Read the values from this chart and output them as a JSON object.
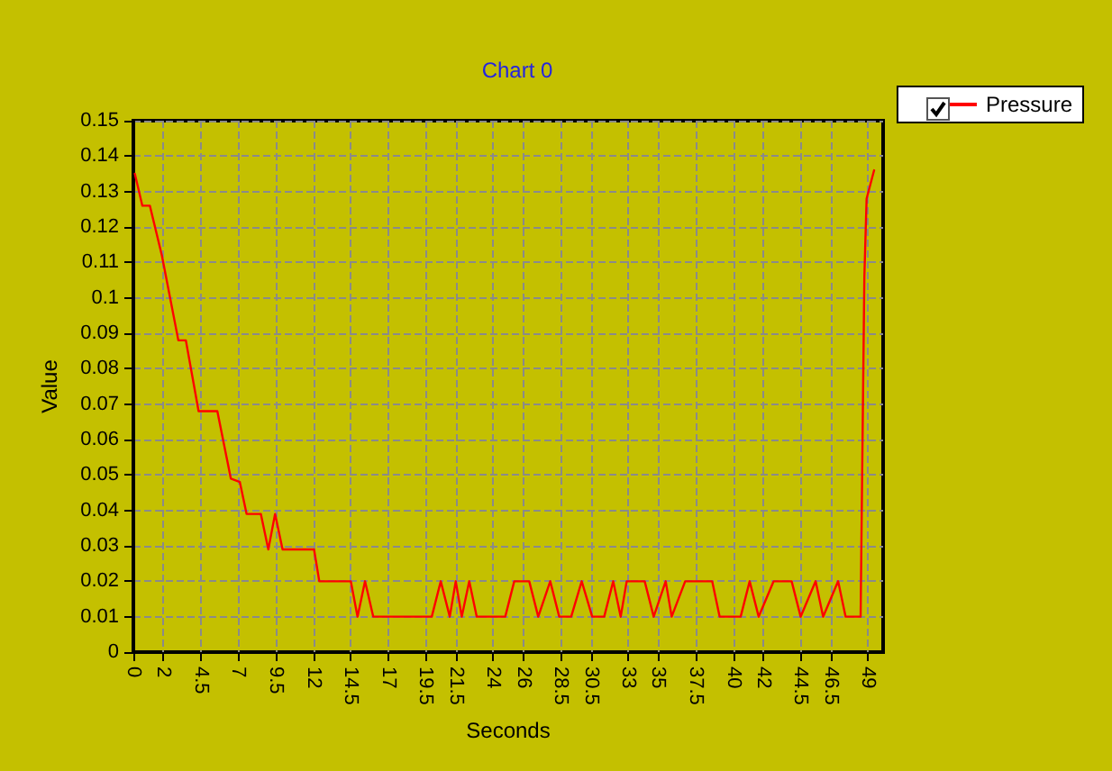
{
  "chart_data": {
    "type": "line",
    "title": "Chart 0",
    "xlabel": "Seconds",
    "ylabel": "Value",
    "xlim": [
      0,
      50
    ],
    "xticks": [
      0,
      2,
      4.5,
      7,
      9.5,
      12,
      14.5,
      17,
      19.5,
      21.5,
      24,
      26,
      28.5,
      30.5,
      33,
      35,
      37.5,
      40,
      42,
      44.5,
      46.5,
      49
    ],
    "ylim": [
      0,
      0.15
    ],
    "yticks": [
      0,
      0.01,
      0.02,
      0.03,
      0.04,
      0.05,
      0.06,
      0.07,
      0.08,
      0.09,
      0.1,
      0.11,
      0.12,
      0.13,
      0.14,
      0.15
    ],
    "grid": true,
    "legend": "top right",
    "line_style": "solid",
    "marker": "none",
    "series": [
      {
        "name": "Pressure",
        "color": "#ff0000",
        "x": [
          0.1,
          0.6,
          1.1,
          1.9,
          3.0,
          3.5,
          4.35,
          5.6,
          6.5,
          7.1,
          7.55,
          8.5,
          9.0,
          9.45,
          9.95,
          12.05,
          12.4,
          14.5,
          14.95,
          15.45,
          16.0,
          19.9,
          20.5,
          21.1,
          21.5,
          21.9,
          22.4,
          22.9,
          24.8,
          25.4,
          26.4,
          27.0,
          27.8,
          28.4,
          29.2,
          29.9,
          30.6,
          31.4,
          32.0,
          32.5,
          32.9,
          34.1,
          34.7,
          35.5,
          35.9,
          36.8,
          38.6,
          39.1,
          40.5,
          41.1,
          41.7,
          42.7,
          43.9,
          44.5,
          45.5,
          46.0,
          47.0,
          47.5,
          48.5,
          48.55,
          48.65,
          48.75,
          48.9,
          49.4
        ],
        "values": [
          0.135,
          0.126,
          0.126,
          0.112,
          0.088,
          0.088,
          0.068,
          0.068,
          0.049,
          0.048,
          0.039,
          0.039,
          0.029,
          0.039,
          0.029,
          0.029,
          0.02,
          0.02,
          0.01,
          0.02,
          0.01,
          0.01,
          0.02,
          0.01,
          0.02,
          0.01,
          0.02,
          0.01,
          0.01,
          0.02,
          0.02,
          0.01,
          0.02,
          0.01,
          0.01,
          0.02,
          0.01,
          0.01,
          0.02,
          0.01,
          0.02,
          0.02,
          0.01,
          0.02,
          0.01,
          0.02,
          0.02,
          0.01,
          0.01,
          0.02,
          0.01,
          0.02,
          0.02,
          0.01,
          0.02,
          0.01,
          0.02,
          0.01,
          0.01,
          0.03,
          0.068,
          0.106,
          0.128,
          0.136
        ]
      }
    ]
  }
}
